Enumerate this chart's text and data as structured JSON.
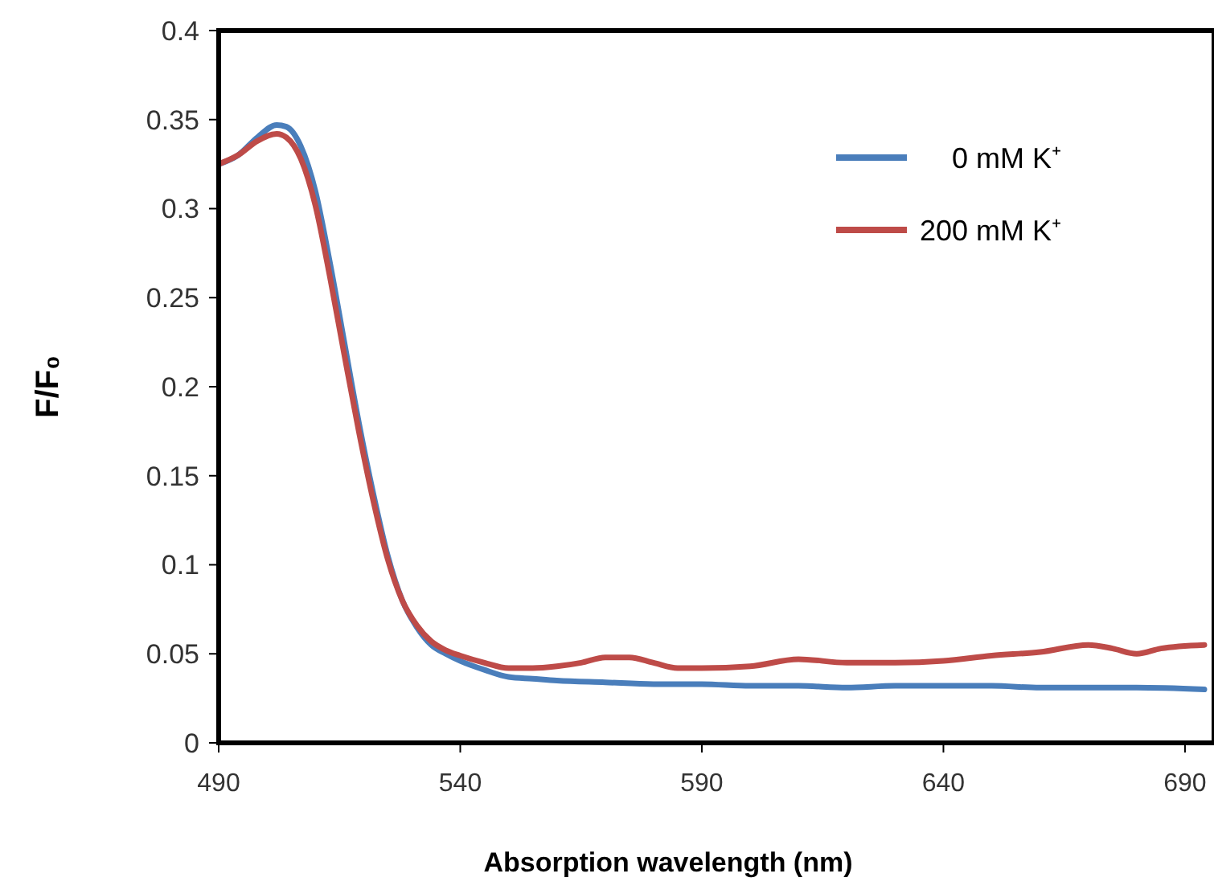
{
  "chart_data": {
    "type": "line",
    "xlabel": "Absorption wavelength (nm)",
    "ylabel": "F/F₀",
    "xlim": [
      490,
      696
    ],
    "xticks": [
      490,
      540,
      590,
      640,
      690
    ],
    "ylim": [
      0,
      0.4
    ],
    "yticks": [
      0,
      0.05,
      0.1,
      0.15,
      0.2,
      0.25,
      0.3,
      0.35,
      0.4
    ],
    "grid": false,
    "legend": "top right",
    "marker": "none",
    "line_style": "solid",
    "series": [
      {
        "name": "0 mM K⁺",
        "color": "#4a7ebb",
        "x": [
          490,
          494,
          498,
          502,
          504,
          507,
          510,
          513,
          516,
          519,
          522,
          525,
          528,
          531,
          534,
          537,
          540,
          545,
          550,
          555,
          560,
          570,
          580,
          590,
          600,
          610,
          620,
          630,
          640,
          650,
          660,
          670,
          680,
          694
        ],
        "values": [
          0.325,
          0.33,
          0.34,
          0.347,
          0.346,
          0.335,
          0.31,
          0.27,
          0.225,
          0.18,
          0.14,
          0.105,
          0.08,
          0.065,
          0.055,
          0.05,
          0.046,
          0.041,
          0.037,
          0.036,
          0.035,
          0.034,
          0.033,
          0.033,
          0.032,
          0.032,
          0.031,
          0.032,
          0.032,
          0.032,
          0.031,
          0.031,
          0.031,
          0.03
        ]
      },
      {
        "name": "200 mM K⁺",
        "color": "#be4b48",
        "x": [
          490,
          494,
          498,
          502,
          504,
          507,
          510,
          513,
          516,
          519,
          522,
          525,
          528,
          531,
          534,
          537,
          540,
          545,
          550,
          555,
          560,
          565,
          570,
          575,
          580,
          585,
          590,
          600,
          610,
          620,
          630,
          640,
          650,
          660,
          670,
          675,
          680,
          685,
          694
        ],
        "values": [
          0.325,
          0.33,
          0.338,
          0.342,
          0.34,
          0.328,
          0.302,
          0.262,
          0.218,
          0.175,
          0.136,
          0.103,
          0.08,
          0.066,
          0.057,
          0.052,
          0.049,
          0.045,
          0.042,
          0.042,
          0.043,
          0.045,
          0.048,
          0.048,
          0.045,
          0.042,
          0.042,
          0.043,
          0.047,
          0.045,
          0.045,
          0.046,
          0.049,
          0.051,
          0.055,
          0.053,
          0.05,
          0.053,
          0.055
        ]
      }
    ]
  }
}
